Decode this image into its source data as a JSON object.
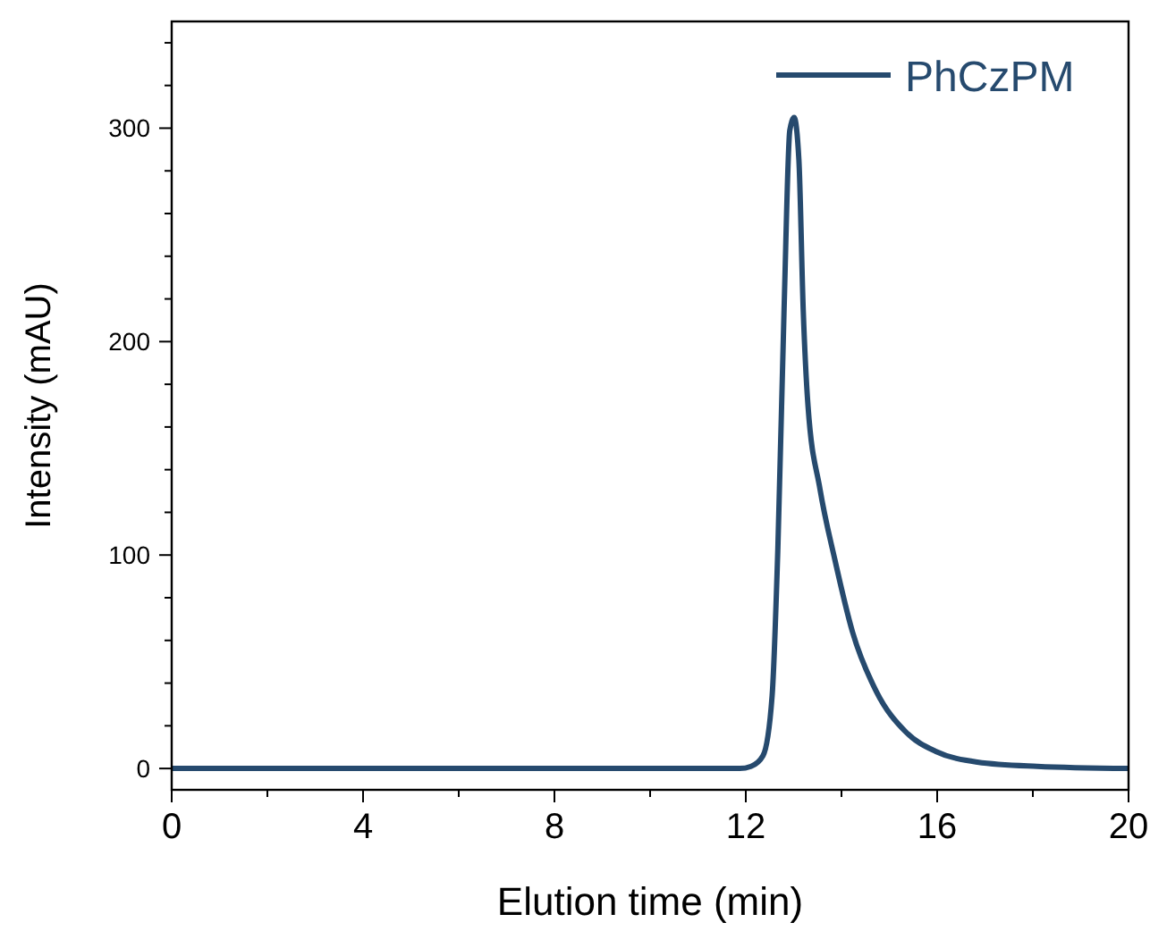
{
  "chart_data": {
    "type": "line",
    "xlabel": "Elution time (min)",
    "ylabel": "Intensity (mAU)",
    "xlim": [
      0,
      20
    ],
    "xticks": [
      0,
      {
        "value": 2,
        "label": null
      },
      4,
      {
        "value": 6,
        "label": null
      },
      8,
      {
        "value": 10,
        "label": null
      },
      12,
      {
        "value": 14,
        "label": null
      },
      16,
      {
        "value": 18,
        "label": null
      },
      20
    ],
    "ylim": [
      -10,
      350
    ],
    "yticks": [
      0,
      {
        "value": 20,
        "label": null
      },
      {
        "value": 40,
        "label": null
      },
      {
        "value": 60,
        "label": null
      },
      {
        "value": 80,
        "label": null
      },
      100,
      {
        "value": 120,
        "label": null
      },
      {
        "value": 140,
        "label": null
      },
      {
        "value": 160,
        "label": null
      },
      {
        "value": 180,
        "label": null
      },
      200,
      {
        "value": 220,
        "label": null
      },
      {
        "value": 240,
        "label": null
      },
      {
        "value": 260,
        "label": null
      },
      {
        "value": 280,
        "label": null
      },
      300,
      {
        "value": 320,
        "label": null
      },
      {
        "value": 340,
        "label": null
      }
    ],
    "grid": false,
    "legend": "top right",
    "line_style": "solid",
    "series": [
      {
        "name": "PhCzPM",
        "color": "#264a6e",
        "x": [
          0,
          2,
          4,
          6,
          8,
          10,
          11.87,
          12.11,
          12.36,
          12.55,
          12.67,
          12.8,
          12.92,
          13.01,
          13.11,
          13.2,
          13.3,
          13.55,
          13.86,
          14.23,
          14.73,
          15.35,
          15.97,
          16.84,
          18.09,
          20
        ],
        "values": [
          0,
          0,
          0,
          0,
          0,
          0,
          0,
          1,
          6,
          34,
          103,
          215,
          299,
          305,
          285,
          215,
          170,
          131,
          98,
          64,
          36,
          17,
          8,
          3,
          1,
          0
        ]
      }
    ]
  }
}
